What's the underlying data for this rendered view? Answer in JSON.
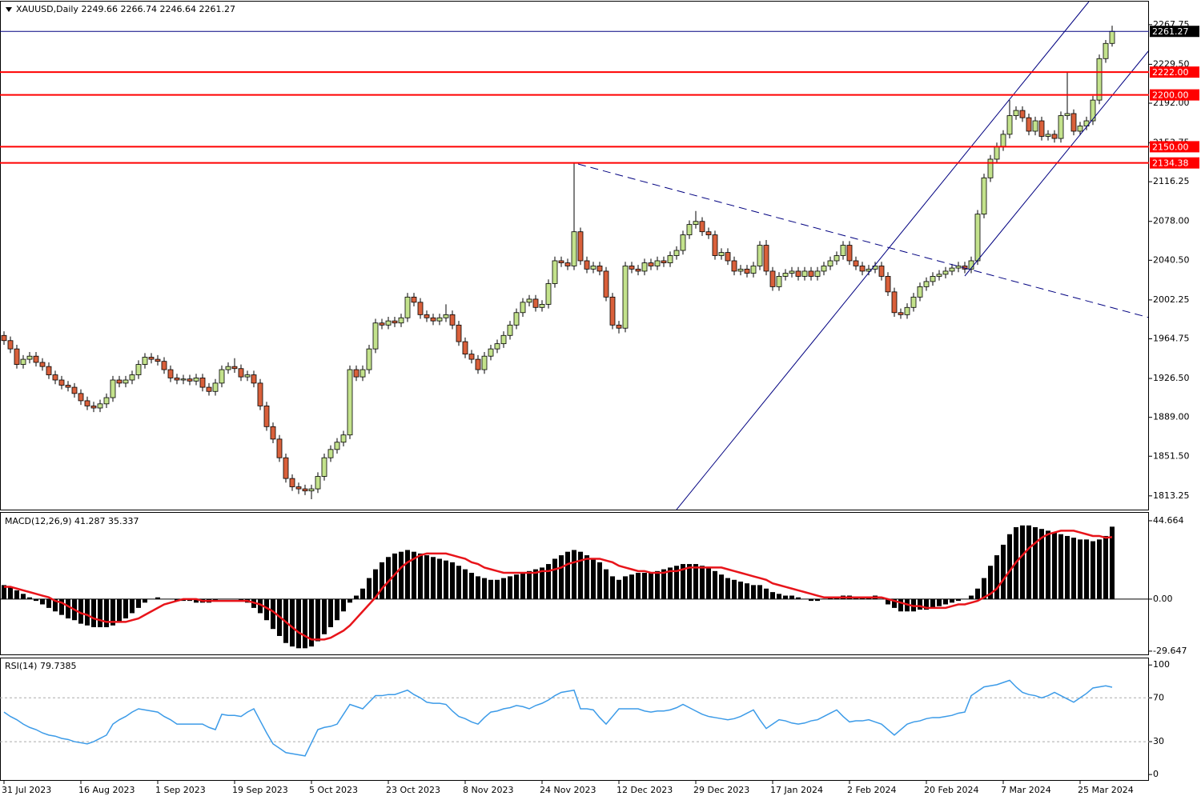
{
  "chart_data": [
    {
      "type": "candlestick",
      "title": "XAUUSD,Daily",
      "open": [
        1968,
        1963,
        1955,
        1940,
        1945,
        1948,
        1942,
        1938,
        1930,
        1925,
        1920,
        1918,
        1912,
        1905,
        1900,
        1898,
        1902,
        1908,
        1925,
        1922,
        1925,
        1930,
        1940,
        1947,
        1945,
        1943,
        1935,
        1927,
        1925,
        1926,
        1924,
        1927,
        1918,
        1914,
        1922,
        1935,
        1938,
        1936,
        1928,
        1930,
        1922,
        1900,
        1880,
        1868,
        1850,
        1830,
        1822,
        1820,
        1818,
        1820,
        1832,
        1850,
        1858,
        1865,
        1872,
        1935,
        1928,
        1935,
        1955,
        1980,
        1978,
        1982,
        1980,
        1985,
        2005,
        2000,
        1988,
        1985,
        1982,
        1985,
        1988,
        1978,
        1962,
        1950,
        1945,
        1935,
        1948,
        1955,
        1960,
        1968,
        1978,
        1990,
        2000,
        2003,
        1995,
        1998,
        2018,
        2040,
        2038,
        2035,
        2068,
        2040,
        2032,
        2035,
        2030,
        2005,
        1978,
        1975,
        2035,
        2032,
        2030,
        2038,
        2035,
        2040,
        2038,
        2045,
        2050,
        2065,
        2075,
        2078,
        2068,
        2065,
        2045,
        2048,
        2040,
        2030,
        2032,
        2028,
        2035,
        2055,
        2030,
        2015,
        2025,
        2028,
        2030,
        2025,
        2030,
        2025,
        2030,
        2035,
        2040,
        2045,
        2055,
        2040,
        2035,
        2030,
        2032,
        2035,
        2025,
        2010,
        1990,
        1988,
        1995,
        2005,
        2015,
        2020,
        2025,
        2027,
        2030,
        2033,
        2035,
        2032,
        2040,
        2085,
        2120,
        2138,
        2150,
        2162,
        2180,
        2185,
        2178,
        2165,
        2175,
        2160,
        2162,
        2158,
        2180,
        2182,
        2165,
        2170,
        2175,
        2195,
        2235,
        2249.66
      ],
      "high": [
        1972,
        1967,
        1959,
        1949,
        1952,
        1952,
        1946,
        1942,
        1934,
        1929,
        1924,
        1922,
        1916,
        1909,
        1904,
        1906,
        1912,
        1929,
        1929,
        1929,
        1934,
        1944,
        1951,
        1951,
        1949,
        1947,
        1939,
        1931,
        1930,
        1930,
        1931,
        1931,
        1922,
        1926,
        1939,
        1942,
        1946,
        1940,
        1934,
        1934,
        1926,
        1904,
        1884,
        1872,
        1854,
        1834,
        1826,
        1824,
        1824,
        1836,
        1854,
        1862,
        1869,
        1876,
        1939,
        1939,
        1939,
        1959,
        1984,
        1984,
        1986,
        1986,
        1989,
        2009,
        2009,
        2004,
        1992,
        1989,
        1989,
        1998,
        1992,
        1982,
        1966,
        1954,
        1949,
        1952,
        1959,
        1964,
        1972,
        1982,
        1994,
        2004,
        2007,
        2007,
        2002,
        2022,
        2044,
        2044,
        2042,
        2135,
        2072,
        2044,
        2039,
        2039,
        2034,
        2009,
        1982,
        2039,
        2039,
        2036,
        2042,
        2042,
        2044,
        2044,
        2049,
        2054,
        2069,
        2079,
        2088,
        2082,
        2072,
        2069,
        2052,
        2052,
        2044,
        2036,
        2036,
        2039,
        2059,
        2060,
        2034,
        2029,
        2032,
        2034,
        2034,
        2034,
        2034,
        2034,
        2039,
        2044,
        2049,
        2059,
        2059,
        2044,
        2039,
        2036,
        2039,
        2039,
        2029,
        2014,
        1994,
        1999,
        2009,
        2019,
        2024,
        2029,
        2031,
        2034,
        2037,
        2039,
        2039,
        2044,
        2089,
        2124,
        2142,
        2154,
        2166,
        2195,
        2189,
        2189,
        2182,
        2179,
        2179,
        2166,
        2166,
        2184,
        2222,
        2186,
        2174,
        2179,
        2199,
        2239,
        2253,
        2266.74
      ],
      "low": [
        1959,
        1951,
        1936,
        1936,
        1941,
        1938,
        1934,
        1926,
        1921,
        1916,
        1914,
        1908,
        1901,
        1896,
        1894,
        1894,
        1898,
        1904,
        1918,
        1918,
        1921,
        1926,
        1936,
        1941,
        1939,
        1931,
        1923,
        1921,
        1921,
        1920,
        1920,
        1914,
        1910,
        1910,
        1918,
        1931,
        1932,
        1924,
        1924,
        1918,
        1896,
        1876,
        1864,
        1846,
        1826,
        1818,
        1815,
        1814,
        1810,
        1816,
        1828,
        1846,
        1854,
        1861,
        1868,
        1924,
        1924,
        1931,
        1951,
        1974,
        1974,
        1976,
        1976,
        1981,
        1996,
        1984,
        1981,
        1978,
        1978,
        1981,
        1974,
        1958,
        1946,
        1941,
        1931,
        1931,
        1944,
        1951,
        1956,
        1964,
        1974,
        1986,
        1996,
        1991,
        1991,
        1994,
        2014,
        2034,
        2031,
        2031,
        2036,
        2028,
        2028,
        2026,
        2001,
        1974,
        1970,
        1971,
        2028,
        2026,
        2026,
        2031,
        2031,
        2034,
        2034,
        2041,
        2046,
        2061,
        2071,
        2064,
        2061,
        2041,
        2041,
        2036,
        2026,
        2026,
        2024,
        2024,
        2031,
        2026,
        2011,
        2011,
        2021,
        2024,
        2021,
        2021,
        2021,
        2021,
        2026,
        2031,
        2036,
        2041,
        2036,
        2031,
        2026,
        2026,
        2028,
        2021,
        2006,
        1986,
        1984,
        1984,
        1991,
        2001,
        2011,
        2016,
        2021,
        2023,
        2026,
        2029,
        2028,
        2028,
        2036,
        2081,
        2116,
        2134,
        2146,
        2158,
        2176,
        2174,
        2161,
        2161,
        2156,
        2156,
        2154,
        2154,
        2176,
        2161,
        2161,
        2166,
        2171,
        2191,
        2231,
        2246.64
      ],
      "close": [
        1963,
        1955,
        1940,
        1945,
        1948,
        1942,
        1938,
        1930,
        1925,
        1920,
        1918,
        1912,
        1905,
        1900,
        1898,
        1902,
        1908,
        1925,
        1922,
        1925,
        1930,
        1940,
        1947,
        1945,
        1943,
        1935,
        1927,
        1925,
        1926,
        1924,
        1927,
        1918,
        1914,
        1922,
        1935,
        1938,
        1936,
        1928,
        1930,
        1922,
        1900,
        1880,
        1868,
        1850,
        1830,
        1822,
        1820,
        1818,
        1820,
        1832,
        1850,
        1858,
        1865,
        1872,
        1935,
        1928,
        1935,
        1955,
        1980,
        1978,
        1982,
        1980,
        1985,
        2005,
        2000,
        1988,
        1985,
        1982,
        1985,
        1988,
        1978,
        1962,
        1950,
        1945,
        1935,
        1948,
        1955,
        1960,
        1968,
        1978,
        1990,
        2000,
        2003,
        1995,
        1998,
        2018,
        2040,
        2038,
        2035,
        2068,
        2040,
        2032,
        2035,
        2030,
        2005,
        1978,
        1975,
        2035,
        2032,
        2030,
        2038,
        2035,
        2040,
        2038,
        2045,
        2050,
        2065,
        2075,
        2078,
        2068,
        2065,
        2045,
        2048,
        2040,
        2030,
        2032,
        2028,
        2035,
        2055,
        2030,
        2015,
        2025,
        2028,
        2030,
        2025,
        2030,
        2025,
        2030,
        2035,
        2040,
        2045,
        2055,
        2040,
        2035,
        2030,
        2032,
        2035,
        2025,
        2010,
        1990,
        1988,
        1995,
        2005,
        2015,
        2020,
        2025,
        2027,
        2030,
        2033,
        2035,
        2032,
        2040,
        2085,
        2120,
        2138,
        2150,
        2162,
        2180,
        2185,
        2178,
        2165,
        2175,
        2160,
        2162,
        2158,
        2180,
        2182,
        2165,
        2170,
        2175,
        2195,
        2235,
        2249.66,
        2261.27
      ],
      "up_color": "#c3e28c",
      "down_color": "#d9603b",
      "wick_color": "#000000",
      "ylim": [
        1800,
        2290
      ],
      "yticks": [
        1813.25,
        {
          "value": 1851.5,
          "label": "1851.50"
        },
        {
          "value": 1889,
          "label": "1889.00"
        },
        {
          "value": 1926.5,
          "label": "1926.50"
        },
        1964.75,
        2002.25,
        {
          "value": 2040.5,
          "label": "2040.50"
        },
        {
          "value": 2078,
          "label": "2078.00"
        },
        2116.25,
        2153.75,
        {
          "value": 2192,
          "label": "2192.00"
        },
        {
          "value": 2229.5,
          "label": "2229.50"
        },
        2267.75
      ],
      "levels": [
        {
          "value": 2222,
          "label": "2222.00"
        },
        {
          "value": 2200,
          "label": "2200.00"
        },
        {
          "value": 2150,
          "label": "2150.00"
        },
        {
          "value": 2134.38,
          "label": "2134.38"
        }
      ],
      "level_color": "#ff0000",
      "price_line_color": "#000080"
    },
    {
      "type": "macd",
      "title": "MACD(12,26,9)",
      "histogram": [
        8,
        7,
        5,
        3,
        1,
        -1,
        -3,
        -5,
        -7,
        -9,
        -11,
        -12,
        -14,
        -15,
        -16,
        -16,
        -16,
        -15,
        -13,
        -11,
        -8,
        -5,
        -2,
        0,
        1,
        0,
        0,
        -1,
        -1,
        -1,
        -2,
        -2,
        -2,
        -1,
        0,
        0,
        0,
        -1,
        -2,
        -5,
        -8,
        -12,
        -17,
        -21,
        -25,
        -27,
        -28,
        -28,
        -27,
        -24,
        -20,
        -16,
        -12,
        -7,
        -2,
        2,
        6,
        12,
        17,
        21,
        24,
        26,
        27,
        28,
        27,
        26,
        25,
        24,
        23,
        22,
        21,
        19,
        17,
        15,
        13,
        12,
        11,
        11,
        12,
        13,
        14,
        15,
        16,
        17,
        18,
        20,
        23,
        25,
        27,
        28,
        27,
        25,
        23,
        21,
        17,
        13,
        11,
        13,
        14,
        15,
        15,
        15,
        16,
        17,
        18,
        19,
        20,
        20,
        20,
        19,
        18,
        16,
        14,
        12,
        11,
        10,
        9,
        8,
        8,
        6,
        4,
        3,
        2,
        2,
        1,
        0,
        -1,
        -1,
        0,
        1,
        1,
        2,
        2,
        1,
        1,
        1,
        2,
        0,
        -3,
        -5,
        -7,
        -7,
        -7,
        -6,
        -6,
        -5,
        -4,
        -3,
        -2,
        -1,
        0,
        2,
        6,
        12,
        19,
        25,
        31,
        37,
        41,
        42,
        42,
        41,
        40,
        39,
        38,
        37,
        36,
        35,
        34,
        34,
        33,
        34,
        36,
        41.287
      ],
      "signal": [
        7,
        7,
        6,
        5,
        4,
        3,
        2,
        1,
        -1,
        -2,
        -4,
        -6,
        -8,
        -9,
        -11,
        -12,
        -13,
        -13,
        -13,
        -13,
        -12,
        -11,
        -9,
        -7,
        -5,
        -3,
        -2,
        -1,
        0,
        0,
        0,
        -1,
        -1,
        -1,
        -1,
        -1,
        -1,
        -1,
        -1,
        -2,
        -3,
        -5,
        -7,
        -10,
        -13,
        -16,
        -19,
        -21,
        -23,
        -23,
        -23,
        -22,
        -20,
        -18,
        -15,
        -11,
        -7,
        -3,
        1,
        6,
        10,
        14,
        18,
        21,
        23,
        25,
        26,
        26,
        26,
        26,
        25,
        24,
        23,
        21,
        20,
        18,
        17,
        16,
        15,
        15,
        15,
        15,
        15,
        15,
        16,
        16,
        17,
        18,
        20,
        21,
        22,
        23,
        23,
        23,
        22,
        21,
        19,
        18,
        17,
        16,
        16,
        15,
        15,
        15,
        16,
        16,
        17,
        18,
        18,
        18,
        18,
        18,
        18,
        17,
        16,
        15,
        14,
        13,
        12,
        11,
        9,
        8,
        7,
        6,
        5,
        4,
        3,
        2,
        1,
        1,
        1,
        1,
        1,
        1,
        1,
        1,
        1,
        1,
        0,
        -1,
        -2,
        -3,
        -4,
        -4,
        -5,
        -5,
        -5,
        -5,
        -4,
        -3,
        -3,
        -2,
        -1,
        1,
        3,
        6,
        11,
        16,
        21,
        25,
        29,
        32,
        35,
        37,
        38,
        39,
        39,
        39,
        38,
        37,
        36,
        36,
        35,
        35.337
      ],
      "histogram_color": "#000000",
      "signal_color": "#e8141a",
      "ylim": [
        -31.5,
        49.2
      ],
      "yticks": [
        -29.647,
        {
          "value": 0,
          "label": "0.00"
        },
        44.664
      ]
    },
    {
      "type": "line",
      "title": "RSI(14)",
      "values": [
        57,
        53,
        50,
        46,
        43,
        41,
        38,
        36,
        35,
        33,
        32,
        30,
        29,
        28,
        30,
        33,
        36,
        46,
        50,
        53,
        57,
        60,
        59,
        58,
        57,
        53,
        50,
        46,
        46,
        46,
        46,
        46,
        43,
        41,
        55,
        54,
        54,
        53,
        57,
        60,
        49,
        38,
        28,
        24,
        20,
        19,
        18,
        17,
        29,
        41,
        43,
        44,
        46,
        55,
        64,
        62,
        60,
        66,
        72,
        72,
        73,
        73,
        75,
        77,
        73,
        70,
        66,
        65,
        65,
        64,
        58,
        53,
        51,
        48,
        46,
        52,
        57,
        58,
        60,
        61,
        63,
        62,
        60,
        63,
        65,
        68,
        72,
        75,
        76,
        77,
        60,
        60,
        59,
        52,
        46,
        53,
        60,
        60,
        60,
        60,
        58,
        57,
        58,
        58,
        59,
        61,
        64,
        61,
        58,
        55,
        53,
        52,
        51,
        50,
        51,
        53,
        56,
        59,
        50,
        42,
        46,
        50,
        49,
        47,
        46,
        47,
        49,
        50,
        53,
        56,
        59,
        53,
        48,
        49,
        49,
        50,
        48,
        46,
        41,
        36,
        41,
        46,
        48,
        49,
        51,
        52,
        52,
        53,
        54,
        56,
        57,
        72,
        76,
        80,
        81,
        82,
        84,
        86,
        80,
        75,
        73,
        72,
        70,
        72,
        75,
        72,
        69,
        66,
        70,
        74,
        79,
        80,
        81,
        79.7385
      ],
      "color": "#3c9be8",
      "levels": [
        70,
        30
      ],
      "ylim": [
        -5,
        106
      ],
      "yticks": [
        0,
        30,
        70,
        100
      ],
      "xticks": [
        {
          "value": 0,
          "label": "31 Jul 2023"
        },
        {
          "value": 12,
          "label": "16 Aug 2023"
        },
        {
          "value": 24,
          "label": "1 Sep 2023"
        },
        {
          "value": 36,
          "label": "19 Sep 2023"
        },
        {
          "value": 48,
          "label": "5 Oct 2023"
        },
        {
          "value": 60,
          "label": "23 Oct 2023"
        },
        {
          "value": 72,
          "label": "8 Nov 2023"
        },
        {
          "value": 84,
          "label": "24 Nov 2023"
        },
        {
          "value": 96,
          "label": "12 Dec 2023"
        },
        {
          "value": 108,
          "label": "29 Dec 2023"
        },
        {
          "value": 120,
          "label": "17 Jan 2024"
        },
        {
          "value": 132,
          "label": "2 Feb 2024"
        },
        {
          "value": 144,
          "label": "20 Feb 2024"
        },
        {
          "value": 156,
          "label": "7 Mar 2024"
        },
        {
          "value": 168,
          "label": "25 Mar 2024"
        }
      ]
    }
  ]
}
